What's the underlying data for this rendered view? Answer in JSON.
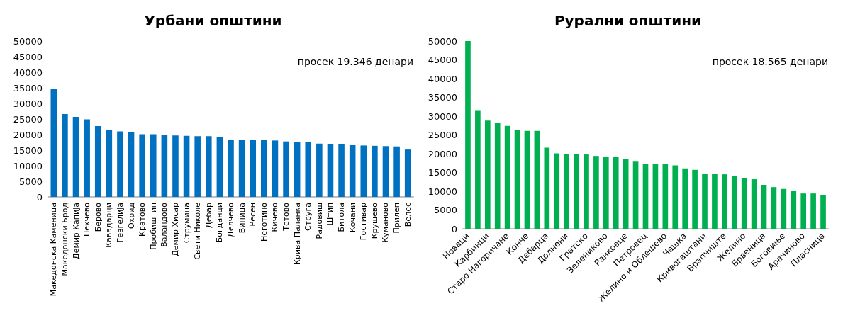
{
  "chart_data": [
    {
      "type": "bar",
      "title": "Урбани општини",
      "categories": [
        "Македонска Каменица",
        "Македонски Брод",
        "Демир Капија",
        "Пехчево",
        "Берово",
        "Кавадарци",
        "Гевгелија",
        "Охрид",
        "Кратово",
        "Пробиштип",
        "Валандово",
        "Демир Хисар",
        "Струмица",
        "Свети Николе",
        "Дебар",
        "Богданци",
        "Делчево",
        "Виница",
        "Ресен",
        "Неготино",
        "Кичево",
        "Тетово",
        "Крива Паланка",
        "Струга",
        "Радовиш",
        "Штип",
        "Битола",
        "Кочани",
        "Гостивар",
        "Крушево",
        "Куманово",
        "Прилеп",
        "Велес"
      ],
      "values": [
        34600,
        26600,
        25700,
        24900,
        22700,
        21400,
        21000,
        20800,
        20100,
        20100,
        19800,
        19700,
        19600,
        19500,
        19500,
        19200,
        18400,
        18300,
        18200,
        18200,
        18100,
        17800,
        17700,
        17500,
        17100,
        17000,
        16900,
        16600,
        16500,
        16400,
        16300,
        16200,
        15200
      ],
      "color": "#0070c0",
      "ylim": [
        0,
        50000
      ],
      "yticks": [
        0,
        5000,
        10000,
        15000,
        20000,
        25000,
        30000,
        35000,
        40000,
        45000,
        50000
      ],
      "grid": false,
      "annotations": [
        "просек 19.346 денари"
      ]
    },
    {
      "type": "bar",
      "title": "Рурални општини",
      "categories": [
        "Новаци",
        null,
        "Карбинци",
        null,
        "Старо Нагоричане",
        null,
        "Конче",
        null,
        "Дебарца",
        null,
        "Долнени",
        null,
        "Гратско",
        null,
        "Зелениково",
        null,
        "Ранковце",
        null,
        "Петровец",
        null,
        "Желино и Облешево",
        null,
        "Чашка",
        null,
        "Кривогаштани",
        null,
        "Врапчиште",
        null,
        "Желино",
        null,
        "Брвеница",
        null,
        "Боговиње",
        null,
        "Арачиново",
        null,
        "Пласница"
      ],
      "values": [
        50000,
        31400,
        28800,
        28100,
        27400,
        26300,
        26100,
        26100,
        21600,
        20100,
        20000,
        19900,
        19800,
        19400,
        19200,
        19200,
        18500,
        17900,
        17300,
        17200,
        17200,
        16900,
        16100,
        15700,
        14700,
        14600,
        14500,
        14000,
        13400,
        13200,
        11700,
        11100,
        10600,
        10200,
        9400,
        9400,
        9000
      ],
      "color": "#00b050",
      "ylim": [
        0,
        50000
      ],
      "yticks": [
        0,
        5000,
        10000,
        15000,
        20000,
        25000,
        30000,
        35000,
        40000,
        45000,
        50000
      ],
      "grid": false,
      "annotations": [
        "просек 18.565 денари"
      ]
    }
  ]
}
